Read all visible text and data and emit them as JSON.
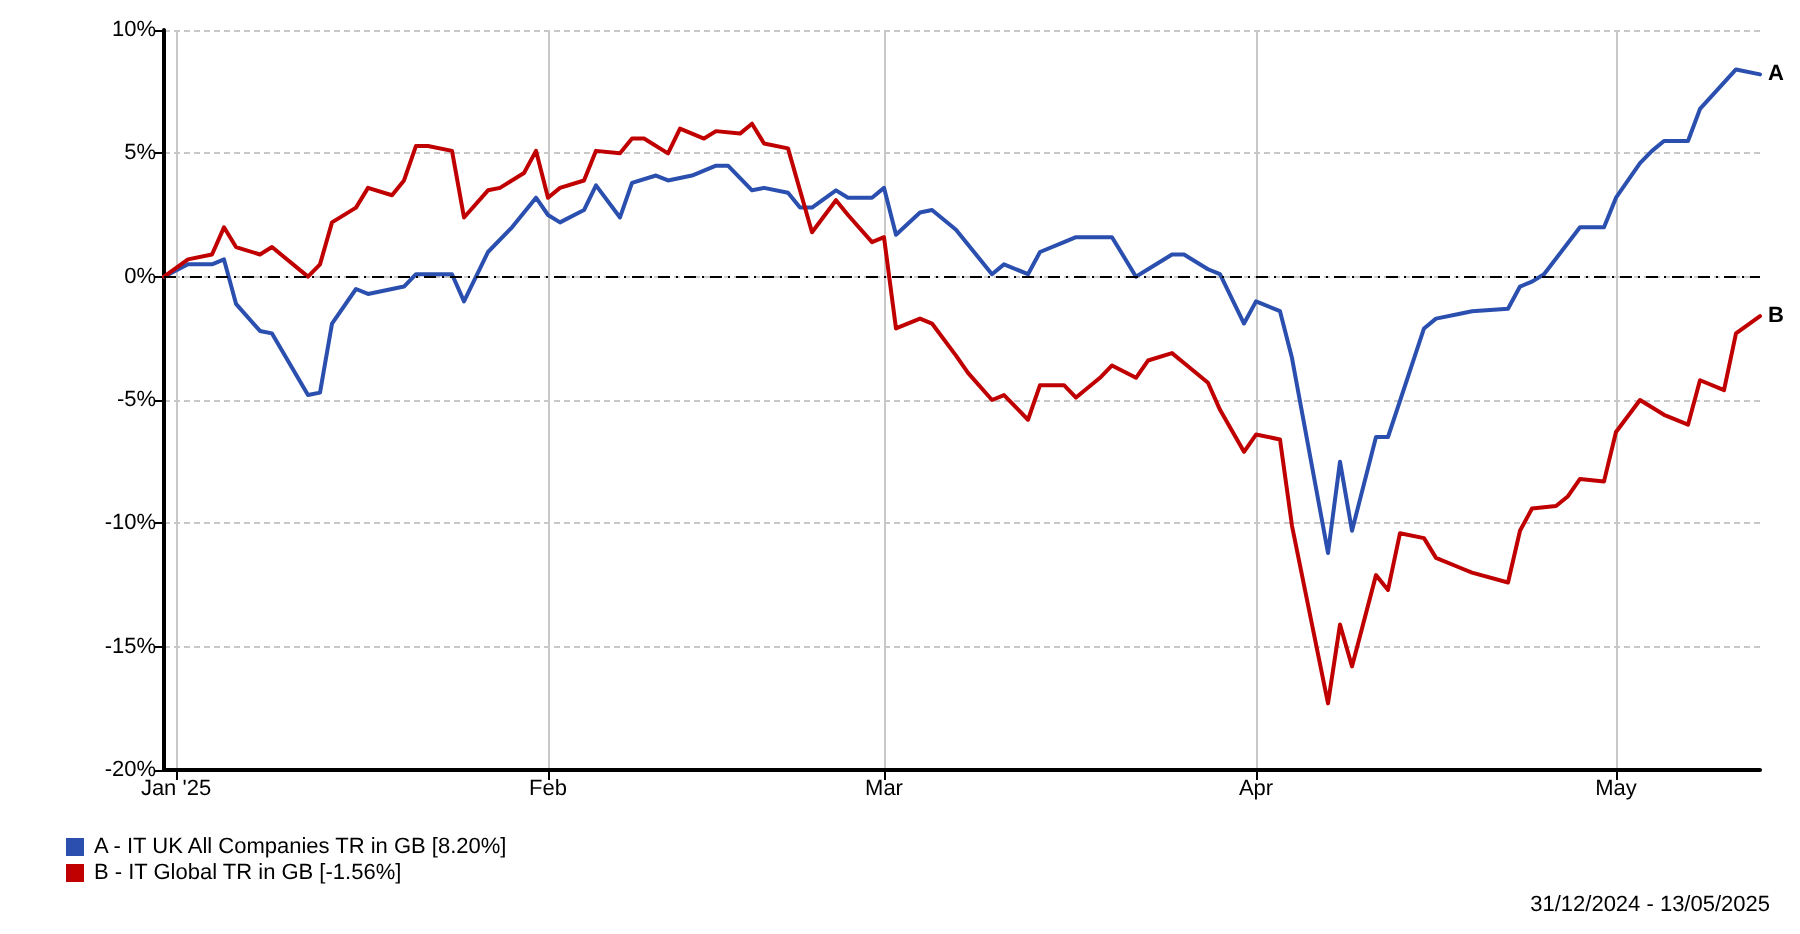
{
  "chart_data": {
    "type": "line",
    "xlim": [
      "2024-12-31",
      "2025-05-13"
    ],
    "xticks": [
      {
        "value": "2025-01-01",
        "label": "Jan '25"
      },
      {
        "value": "2025-02-01",
        "label": "Feb"
      },
      {
        "value": "2025-03-01",
        "label": "Mar"
      },
      {
        "value": "2025-04-01",
        "label": "Apr"
      },
      {
        "value": "2025-05-01",
        "label": "May"
      }
    ],
    "ylim": [
      -20,
      10
    ],
    "yticks": [
      {
        "value": -20,
        "label": "-20%"
      },
      {
        "value": -15,
        "label": "-15%"
      },
      {
        "value": -10,
        "label": "-10%"
      },
      {
        "value": -5,
        "label": "-5%"
      },
      {
        "value": 0,
        "label": "0%"
      },
      {
        "value": 5,
        "label": "5%"
      },
      {
        "value": 10,
        "label": "10%"
      }
    ],
    "grid": true,
    "legend": "bottom left",
    "marker": "none",
    "line_style": "solid",
    "ref_lines": [
      {
        "axis": "y",
        "value": 0,
        "color": "#000000",
        "line_style": "dashed"
      }
    ],
    "annotations": [
      {
        "text": "A",
        "x": "2025-05-13",
        "y": 8.2
      },
      {
        "text": "B",
        "x": "2025-05-13",
        "y": -1.6
      },
      "31/12/2024 - 13/05/2025"
    ],
    "series": [
      {
        "name": "A - IT UK All Companies TR in GB [8.20%]",
        "color": "#2a4faf",
        "x": [
          "2024-12-31",
          "2025-01-02",
          "2025-01-04",
          "2025-01-05",
          "2025-01-06",
          "2025-01-08",
          "2025-01-09",
          "2025-01-12",
          "2025-01-13",
          "2025-01-14",
          "2025-01-16",
          "2025-01-17",
          "2025-01-20",
          "2025-01-21",
          "2025-01-24",
          "2025-01-25",
          "2025-01-27",
          "2025-01-29",
          "2025-01-31",
          "2025-02-01",
          "2025-02-02",
          "2025-02-04",
          "2025-02-05",
          "2025-02-07",
          "2025-02-08",
          "2025-02-10",
          "2025-02-11",
          "2025-02-13",
          "2025-02-15",
          "2025-02-16",
          "2025-02-18",
          "2025-02-19",
          "2025-02-21",
          "2025-02-22",
          "2025-02-23",
          "2025-02-25",
          "2025-02-26",
          "2025-02-28",
          "2025-03-01",
          "2025-03-02",
          "2025-03-04",
          "2025-03-05",
          "2025-03-07",
          "2025-03-10",
          "2025-03-11",
          "2025-03-13",
          "2025-03-14",
          "2025-03-16",
          "2025-03-17",
          "2025-03-20",
          "2025-03-22",
          "2025-03-23",
          "2025-03-25",
          "2025-03-26",
          "2025-03-28",
          "2025-03-29",
          "2025-03-31",
          "2025-04-01",
          "2025-04-03",
          "2025-04-04",
          "2025-04-07",
          "2025-04-08",
          "2025-04-09",
          "2025-04-11",
          "2025-04-12",
          "2025-04-15",
          "2025-04-16",
          "2025-04-18",
          "2025-04-19",
          "2025-04-22",
          "2025-04-23",
          "2025-04-24",
          "2025-04-25",
          "2025-04-28",
          "2025-04-30",
          "2025-05-01",
          "2025-05-03",
          "2025-05-04",
          "2025-05-05",
          "2025-05-07",
          "2025-05-08",
          "2025-05-11",
          "2025-05-13"
        ],
        "values": [
          0,
          0.5,
          0.5,
          0.7,
          -1.1,
          -2.2,
          -2.3,
          -4.8,
          -4.7,
          -1.9,
          -0.5,
          -0.7,
          -0.4,
          0.1,
          0.1,
          -1.0,
          1.0,
          2.0,
          3.2,
          2.5,
          2.2,
          2.7,
          3.7,
          2.4,
          3.8,
          4.1,
          3.9,
          4.1,
          4.5,
          4.5,
          3.5,
          3.6,
          3.4,
          2.8,
          2.8,
          3.5,
          3.2,
          3.2,
          3.6,
          1.7,
          2.6,
          2.7,
          1.9,
          0.1,
          0.5,
          0.1,
          1.0,
          1.4,
          1.6,
          1.6,
          0,
          0.3,
          0.9,
          0.9,
          0.3,
          0.1,
          -1.9,
          -1.0,
          -1.4,
          -3.3,
          -11.2,
          -7.5,
          -10.3,
          -6.5,
          -6.5,
          -2.1,
          -1.7,
          -1.5,
          -1.4,
          -1.3,
          -0.4,
          -0.2,
          0.1,
          2.0,
          2.0,
          3.2,
          4.6,
          5.1,
          5.5,
          5.5,
          6.8,
          8.4,
          8.2
        ]
      },
      {
        "name": "B - IT Global TR in GB [-1.56%]",
        "color": "#c00000",
        "x": [
          "2024-12-31",
          "2025-01-02",
          "2025-01-04",
          "2025-01-05",
          "2025-01-06",
          "2025-01-08",
          "2025-01-09",
          "2025-01-12",
          "2025-01-13",
          "2025-01-14",
          "2025-01-16",
          "2025-01-17",
          "2025-01-19",
          "2025-01-20",
          "2025-01-21",
          "2025-01-22",
          "2025-01-24",
          "2025-01-25",
          "2025-01-27",
          "2025-01-28",
          "2025-01-30",
          "2025-01-31",
          "2025-02-01",
          "2025-02-02",
          "2025-02-04",
          "2025-02-05",
          "2025-02-07",
          "2025-02-08",
          "2025-02-09",
          "2025-02-11",
          "2025-02-12",
          "2025-02-14",
          "2025-02-15",
          "2025-02-17",
          "2025-02-18",
          "2025-02-19",
          "2025-02-21",
          "2025-02-23",
          "2025-02-25",
          "2025-02-26",
          "2025-02-28",
          "2025-03-01",
          "2025-03-02",
          "2025-03-04",
          "2025-03-05",
          "2025-03-07",
          "2025-03-08",
          "2025-03-10",
          "2025-03-11",
          "2025-03-13",
          "2025-03-14",
          "2025-03-16",
          "2025-03-17",
          "2025-03-19",
          "2025-03-20",
          "2025-03-22",
          "2025-03-23",
          "2025-03-25",
          "2025-03-26",
          "2025-03-28",
          "2025-03-29",
          "2025-03-31",
          "2025-04-01",
          "2025-04-03",
          "2025-04-04",
          "2025-04-07",
          "2025-04-08",
          "2025-04-09",
          "2025-04-11",
          "2025-04-12",
          "2025-04-13",
          "2025-04-15",
          "2025-04-16",
          "2025-04-18",
          "2025-04-19",
          "2025-04-22",
          "2025-04-23",
          "2025-04-24",
          "2025-04-26",
          "2025-04-27",
          "2025-04-28",
          "2025-04-30",
          "2025-05-01",
          "2025-05-03",
          "2025-05-05",
          "2025-05-07",
          "2025-05-08",
          "2025-05-10",
          "2025-05-11",
          "2025-05-13"
        ],
        "values": [
          0,
          0.7,
          0.9,
          2.0,
          1.2,
          0.9,
          1.2,
          0.0,
          0.5,
          2.2,
          2.8,
          3.6,
          3.3,
          3.9,
          5.3,
          5.3,
          5.1,
          2.4,
          3.5,
          3.6,
          4.2,
          5.1,
          3.2,
          3.6,
          3.9,
          5.1,
          5.0,
          5.6,
          5.6,
          5.0,
          6.0,
          5.6,
          5.9,
          5.8,
          6.2,
          5.4,
          5.2,
          1.8,
          3.1,
          2.5,
          1.4,
          1.6,
          -2.1,
          -1.7,
          -1.9,
          -3.2,
          -3.9,
          -5.0,
          -4.8,
          -5.8,
          -4.4,
          -4.4,
          -4.9,
          -4.1,
          -3.6,
          -4.1,
          -3.4,
          -3.1,
          -3.5,
          -4.3,
          -5.4,
          -7.1,
          -6.4,
          -6.6,
          -10.1,
          -17.3,
          -14.1,
          -15.8,
          -12.1,
          -12.7,
          -10.4,
          -10.6,
          -11.4,
          -11.8,
          -12.0,
          -12.4,
          -10.3,
          -9.4,
          -9.3,
          -8.9,
          -8.2,
          -8.3,
          -6.3,
          -5.0,
          -5.6,
          -6.0,
          -4.2,
          -4.6,
          -2.3,
          -1.6
        ]
      }
    ]
  }
}
